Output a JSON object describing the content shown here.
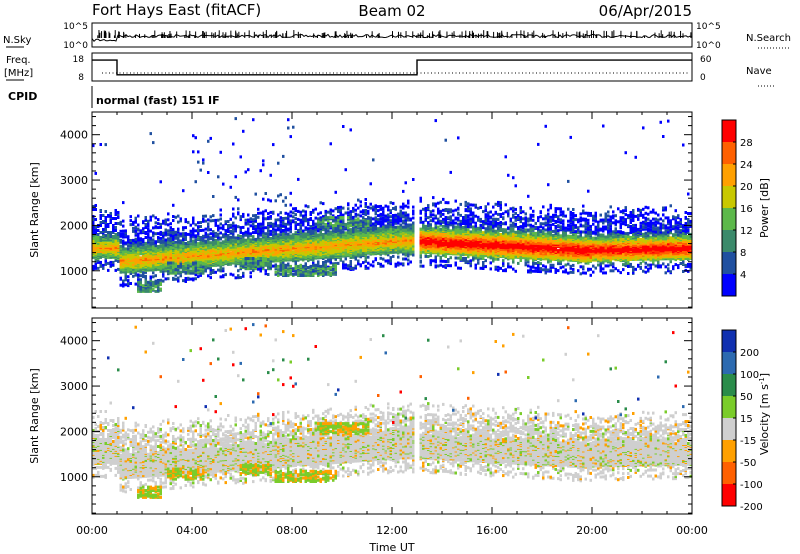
{
  "header": {
    "station": "Fort Hays East (fitACF)",
    "beam": "Beam 02",
    "date": "06/Apr/2015"
  },
  "noise_panel": {
    "left_label": "N.Sky",
    "right_label": "N.Search",
    "left_ticks": [
      "10^5",
      "10^0"
    ],
    "right_ticks": [
      "10^5",
      "10^0"
    ]
  },
  "freq_panel": {
    "left_label_line1": "Freq.",
    "left_label_line2": "[MHz]",
    "right_label": "Nave",
    "left_ticks": [
      "18",
      "8"
    ],
    "right_ticks": [
      "60",
      "0"
    ],
    "freq_steps": [
      {
        "t": 0.0,
        "mhz": 17.5
      },
      {
        "t": 1.0,
        "mhz": 10.8
      },
      {
        "t": 13.0,
        "mhz": 17.5
      },
      {
        "t": 24.0,
        "mhz": 17.5
      }
    ]
  },
  "cpid": {
    "label": "CPID",
    "value": "normal (fast) 151 IF"
  },
  "chart_data": [
    {
      "type": "heatmap",
      "name": "power",
      "ylabel": "Slant Range [km]",
      "yticks": [
        "1000",
        "2000",
        "3000",
        "4000"
      ],
      "ylim": [
        180,
        4500
      ],
      "xlim": [
        0,
        24
      ],
      "colorbar_label": "Power [dB]",
      "colorbar_ticks": [
        "4",
        "8",
        "12",
        "16",
        "20",
        "24",
        "28"
      ],
      "colorbar_range": [
        0,
        30
      ],
      "colors": [
        "#0000ff",
        "#2050a0",
        "#3b8a6b",
        "#5cb84a",
        "#c8c800",
        "#ffa000",
        "#ff6000",
        "#ff0000"
      ]
    },
    {
      "type": "heatmap",
      "name": "velocity",
      "ylabel": "Slant Range [km]",
      "yticks": [
        "1000",
        "2000",
        "3000",
        "4000"
      ],
      "ylim": [
        180,
        4500
      ],
      "xlim": [
        0,
        24
      ],
      "xlabel": "Time UT",
      "xticks": [
        "00:00",
        "04:00",
        "08:00",
        "12:00",
        "16:00",
        "20:00",
        "00:00"
      ],
      "colorbar_label": "Velocity [m s",
      "colorbar_label_sup": "-1",
      "colorbar_ticks": [
        "200",
        "100",
        "50",
        "15",
        "-15",
        "-50",
        "-100",
        "-200"
      ],
      "colors": [
        "#1030b0",
        "#2c6ab0",
        "#2a8c4a",
        "#7acc2a",
        "#cfcfcf",
        "#ffa000",
        "#ff6000",
        "#ff0000"
      ]
    }
  ]
}
